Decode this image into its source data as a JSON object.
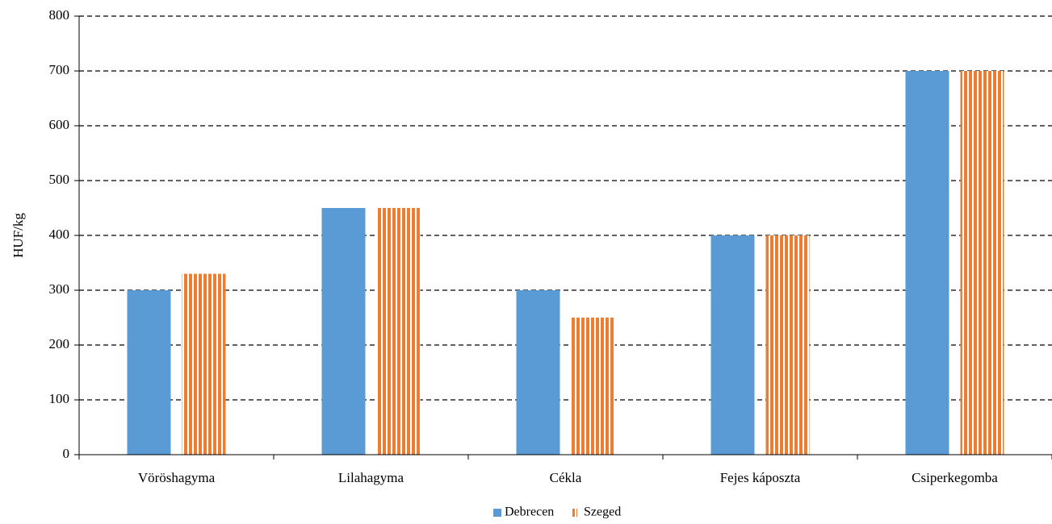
{
  "chart_data": {
    "type": "bar",
    "y_label": "HUF/kg",
    "categories": [
      "Vöröshagyma",
      "Lilahagyma",
      "Cékla",
      "Fejes káposzta",
      "Csiperkegomba"
    ],
    "series": [
      {
        "name": "Debrecen",
        "color": "#5b9bd5",
        "pattern": "solid",
        "values": [
          300,
          450,
          300,
          400,
          700
        ]
      },
      {
        "name": "Szeged",
        "color": "#ed7d31",
        "pattern": "vertical-stripes",
        "values": [
          330,
          450,
          250,
          400,
          700
        ]
      }
    ],
    "ylim": [
      0,
      800
    ],
    "yticks": [
      0,
      100,
      200,
      300,
      400,
      500,
      600,
      700,
      800
    ],
    "grid": true,
    "legend": "bottom"
  }
}
